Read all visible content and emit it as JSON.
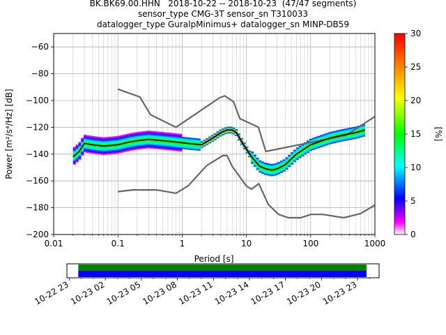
{
  "title_lines": [
    "BK.BK69.00.HHN   2018-10-22 -- 2018-10-23  (47/47 segments)",
    "sensor_type CMG-3T sensor_sn T310033",
    "datalogger_type GuralpMinimus+ datalogger_sn MINP-DB59"
  ],
  "chart_data": {
    "type": "heatmap",
    "xlabel": "Period [s]",
    "ylabel": "Power [m²/s⁴/Hz] [dB]",
    "xscale": "log",
    "xlim": [
      0.01,
      1000
    ],
    "ylim": [
      -200,
      -50
    ],
    "xticks": [
      {
        "value": 0.01,
        "label": "0.01"
      },
      {
        "value": 0.1,
        "label": "0.1"
      },
      {
        "value": 1,
        "label": "1"
      },
      {
        "value": 10,
        "label": "10"
      },
      {
        "value": 100,
        "label": "100"
      },
      {
        "value": 1000,
        "label": "1000"
      }
    ],
    "yticks": [
      -60,
      -80,
      -100,
      -120,
      -140,
      -160,
      -180,
      -200
    ],
    "grid": true,
    "colorbar": {
      "label": "[%]",
      "range": [
        0,
        30
      ],
      "ticks": [
        0,
        5,
        10,
        15,
        20,
        25,
        30
      ],
      "colormap": "pqlx"
    },
    "noise_models": [
      {
        "name": "NHNM",
        "color": "#666666",
        "x": [
          0.1,
          0.22,
          0.32,
          0.8,
          3.8,
          4.6,
          6.3,
          7.9,
          15.4,
          20,
          354.8,
          1000
        ],
        "y": [
          -91.5,
          -97.4,
          -110.5,
          -120,
          -98,
          -96.5,
          -101,
          -113.5,
          -120,
          -138,
          -126,
          -112
        ]
      },
      {
        "name": "NLNM",
        "color": "#666666",
        "x": [
          0.1,
          0.17,
          0.4,
          0.8,
          1.24,
          2.4,
          4.3,
          5,
          6,
          10,
          12,
          15.6,
          21.9,
          31.6,
          45,
          70,
          101,
          154,
          328,
          600,
          1000
        ],
        "y": [
          -168,
          -166.7,
          -166.7,
          -169.2,
          -163.7,
          -148.6,
          -141.1,
          -141.1,
          -149,
          -163.8,
          -166.2,
          -162.1,
          -177.5,
          -185,
          -187.5,
          -187.5,
          -185,
          -185,
          -187.5,
          -184.4,
          -178
        ]
      }
    ],
    "mean_curve": {
      "color": "#000000",
      "x": [
        0.02,
        0.025,
        0.03,
        0.04,
        0.06,
        0.1,
        0.15,
        0.2,
        0.3,
        0.5,
        0.8,
        1.2,
        2,
        3,
        4,
        5,
        6,
        7,
        9,
        12,
        16,
        20,
        25,
        30,
        40,
        60,
        100,
        150,
        200,
        300,
        500,
        700
      ],
      "y": [
        -142,
        -138,
        -132,
        -133,
        -134,
        -133,
        -131,
        -130,
        -129,
        -130,
        -131,
        -132,
        -133,
        -128,
        -124,
        -122,
        -122,
        -124,
        -133,
        -142,
        -149,
        -151,
        -152,
        -151,
        -148,
        -140,
        -133,
        -130,
        -128,
        -126,
        -124,
        -122
      ]
    },
    "time_axis": {
      "tick_labels": [
        "10-22 23",
        "10-23 02",
        "10-23 05",
        "10-23 08",
        "10-23 11",
        "10-23 14",
        "10-23 17",
        "10-23 20",
        "10-23 23"
      ],
      "coverage": {
        "start": "10-22 23:45",
        "end": "10-23 23:45"
      },
      "bar_colors": [
        "#008000",
        "#0000ff"
      ]
    }
  }
}
